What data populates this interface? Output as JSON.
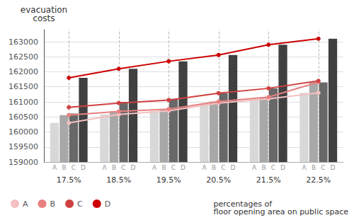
{
  "chart_data": {
    "type": "bar",
    "categories": [
      "17.5%",
      "18.5%",
      "19.5%",
      "20.5%",
      "21.5%",
      "22.5%"
    ],
    "series": [
      {
        "name": "A",
        "type": "bar",
        "color": "#d8d8d8",
        "values": [
          160300,
          160580,
          160700,
          160960,
          161100,
          161300
        ]
      },
      {
        "name": "B",
        "type": "bar",
        "color": "#a8a8a8",
        "values": [
          160560,
          160680,
          160760,
          161010,
          161160,
          161660
        ]
      },
      {
        "name": "C",
        "type": "bar",
        "color": "#686868",
        "values": [
          160610,
          161000,
          161100,
          161280,
          161450,
          161650
        ]
      },
      {
        "name": "D",
        "type": "bar",
        "color": "#404040",
        "values": [
          161800,
          162100,
          162350,
          162560,
          162900,
          163100
        ]
      },
      {
        "name": "A",
        "type": "line",
        "color": "#f5c0c0",
        "marker": "circle",
        "values": [
          160300,
          160580,
          160700,
          160960,
          161100,
          161300
        ]
      },
      {
        "name": "B",
        "type": "line",
        "color": "#e88080",
        "marker": "circle",
        "values": [
          160560,
          160680,
          160760,
          161010,
          161160,
          161660
        ]
      },
      {
        "name": "C",
        "type": "line",
        "color": "#d04040",
        "marker": "circle",
        "values": [
          160820,
          160960,
          161060,
          161290,
          161450,
          161700
        ]
      },
      {
        "name": "D",
        "type": "line",
        "color": "#cc0000",
        "marker": "circle",
        "values": [
          161800,
          162100,
          162350,
          162560,
          162900,
          163100
        ]
      }
    ],
    "ylabel": "evacuation\ncosts",
    "xlabel": "percentages of\nfloor opening area on public space",
    "ylim": [
      159000,
      163400
    ],
    "yticks": [
      159000,
      159500,
      160000,
      160500,
      161000,
      161500,
      162000,
      162500,
      163000
    ],
    "grid": true,
    "legend": "bottom"
  }
}
